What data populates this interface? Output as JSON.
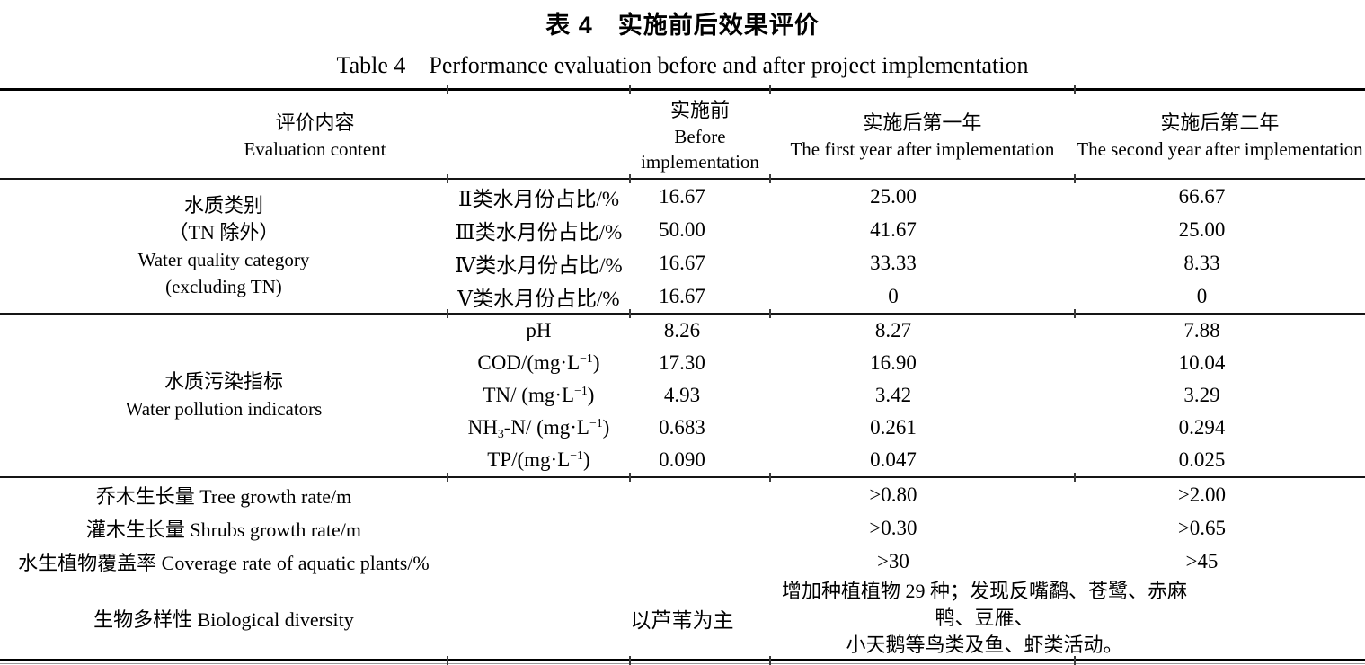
{
  "title": {
    "zh": "表 4　实施前后效果评价",
    "en": "Table 4　Performance evaluation before and after project implementation"
  },
  "header": {
    "col1": {
      "zh": "评价内容",
      "en": "Evaluation content"
    },
    "col2": {
      "zh": "实施前",
      "en1": "Before",
      "en2": "implementation"
    },
    "col3": {
      "zh": "实施后第一年",
      "en": "The first year after implementation"
    },
    "col4": {
      "zh": "实施后第二年",
      "en": "The second year after implementation"
    }
  },
  "sections": {
    "water_quality": {
      "label_lines": [
        "水质类别",
        "（TN 除外）",
        "Water quality category",
        "(excluding TN)"
      ],
      "rows": [
        {
          "indicator": [
            {
              "t": "Ⅱ类水月份占比/%"
            }
          ],
          "values": [
            "16.67",
            "25.00",
            "66.67"
          ]
        },
        {
          "indicator": [
            {
              "t": "Ⅲ类水月份占比/%"
            }
          ],
          "values": [
            "50.00",
            "41.67",
            "25.00"
          ]
        },
        {
          "indicator": [
            {
              "t": "Ⅳ类水月份占比/%"
            }
          ],
          "values": [
            "16.67",
            "33.33",
            "8.33"
          ]
        },
        {
          "indicator": [
            {
              "t": "Ⅴ类水月份占比/%"
            }
          ],
          "values": [
            "16.67",
            "0",
            "0"
          ]
        }
      ]
    },
    "water_pollution": {
      "label_lines": [
        "水质污染指标",
        "Water pollution indicators"
      ],
      "rows": [
        {
          "indicator": [
            {
              "t": "pH"
            }
          ],
          "values": [
            "8.26",
            "8.27",
            "7.88"
          ]
        },
        {
          "indicator": [
            {
              "t": "COD/(mg·L"
            },
            {
              "t": "−1",
              "style": "sup"
            },
            {
              "t": ")"
            }
          ],
          "values": [
            "17.30",
            "16.90",
            "10.04"
          ]
        },
        {
          "indicator": [
            {
              "t": "TN/ (mg·L"
            },
            {
              "t": "−1",
              "style": "sup"
            },
            {
              "t": ")"
            }
          ],
          "values": [
            "4.93",
            "3.42",
            "3.29"
          ]
        },
        {
          "indicator": [
            {
              "t": "NH"
            },
            {
              "t": "3",
              "style": "sub"
            },
            {
              "t": "-N/ (mg·L"
            },
            {
              "t": "−1",
              "style": "sup"
            },
            {
              "t": ")"
            }
          ],
          "values": [
            "0.683",
            "0.261",
            "0.294"
          ]
        },
        {
          "indicator": [
            {
              "t": "TP/(mg·L"
            },
            {
              "t": "−1",
              "style": "sup"
            },
            {
              "t": ")"
            }
          ],
          "values": [
            "0.090",
            "0.047",
            "0.025"
          ]
        }
      ]
    },
    "ecology": {
      "rows": [
        {
          "label": "乔木生长量 Tree growth rate/m",
          "values": [
            "",
            ">0.80",
            ">2.00"
          ]
        },
        {
          "label": "灌木生长量 Shrubs growth rate/m",
          "values": [
            "",
            ">0.30",
            ">0.65"
          ]
        },
        {
          "label": "水生植物覆盖率 Coverage rate of aquatic plants/%",
          "values": [
            "",
            ">30",
            ">45"
          ]
        }
      ],
      "biodiversity": {
        "label": "生物多样性 Biological diversity",
        "before": "以芦苇为主",
        "note_lines": [
          "增加种植植物 29 种；发现反嘴鹬、苍鹭、赤麻鸭、豆雁、",
          "小天鹅等鸟类及鱼、虾类活动。"
        ]
      }
    }
  },
  "colors": {
    "rule": "#000000",
    "rule_secondary": "#9a9a9a",
    "text": "#000000"
  }
}
